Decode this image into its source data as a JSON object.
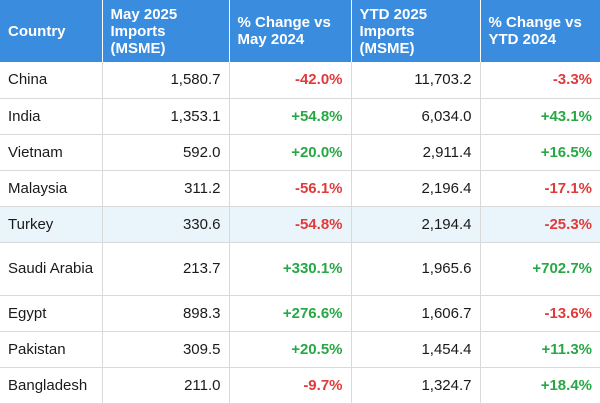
{
  "headers": {
    "country": "Country",
    "may_imports": "May 2025 Imports (MSME)",
    "may_change": "% Change vs May 2024",
    "ytd_imports": "YTD 2025 Imports (MSME)",
    "ytd_change": "% Change vs YTD 2024"
  },
  "colors": {
    "header_bg": "#3a8dde",
    "positive": "#27a844",
    "negative": "#e03b3b",
    "highlight_row": "#eaf4fb"
  },
  "rows": [
    {
      "country": "China",
      "may_imports": "1,580.7",
      "may_change": "-42.0%",
      "ytd_imports": "11,703.2",
      "ytd_change": "-3.3%"
    },
    {
      "country": "India",
      "may_imports": "1,353.1",
      "may_change": "+54.8%",
      "ytd_imports": "6,034.0",
      "ytd_change": "+43.1%"
    },
    {
      "country": "Vietnam",
      "may_imports": "592.0",
      "may_change": "+20.0%",
      "ytd_imports": "2,911.4",
      "ytd_change": "+16.5%"
    },
    {
      "country": "Malaysia",
      "may_imports": "311.2",
      "may_change": "-56.1%",
      "ytd_imports": "2,196.4",
      "ytd_change": "-17.1%"
    },
    {
      "country": "Turkey",
      "may_imports": "330.6",
      "may_change": "-54.8%",
      "ytd_imports": "2,194.4",
      "ytd_change": "-25.3%"
    },
    {
      "country": "Saudi Arabia",
      "may_imports": "213.7",
      "may_change": "+330.1%",
      "ytd_imports": "1,965.6",
      "ytd_change": "+702.7%"
    },
    {
      "country": "Egypt",
      "may_imports": "898.3",
      "may_change": "+276.6%",
      "ytd_imports": "1,606.7",
      "ytd_change": "-13.6%"
    },
    {
      "country": "Pakistan",
      "may_imports": "309.5",
      "may_change": "+20.5%",
      "ytd_imports": "1,454.4",
      "ytd_change": "+11.3%"
    },
    {
      "country": "Bangladesh",
      "may_imports": "211.0",
      "may_change": "-9.7%",
      "ytd_imports": "1,324.7",
      "ytd_change": "+18.4%"
    }
  ]
}
